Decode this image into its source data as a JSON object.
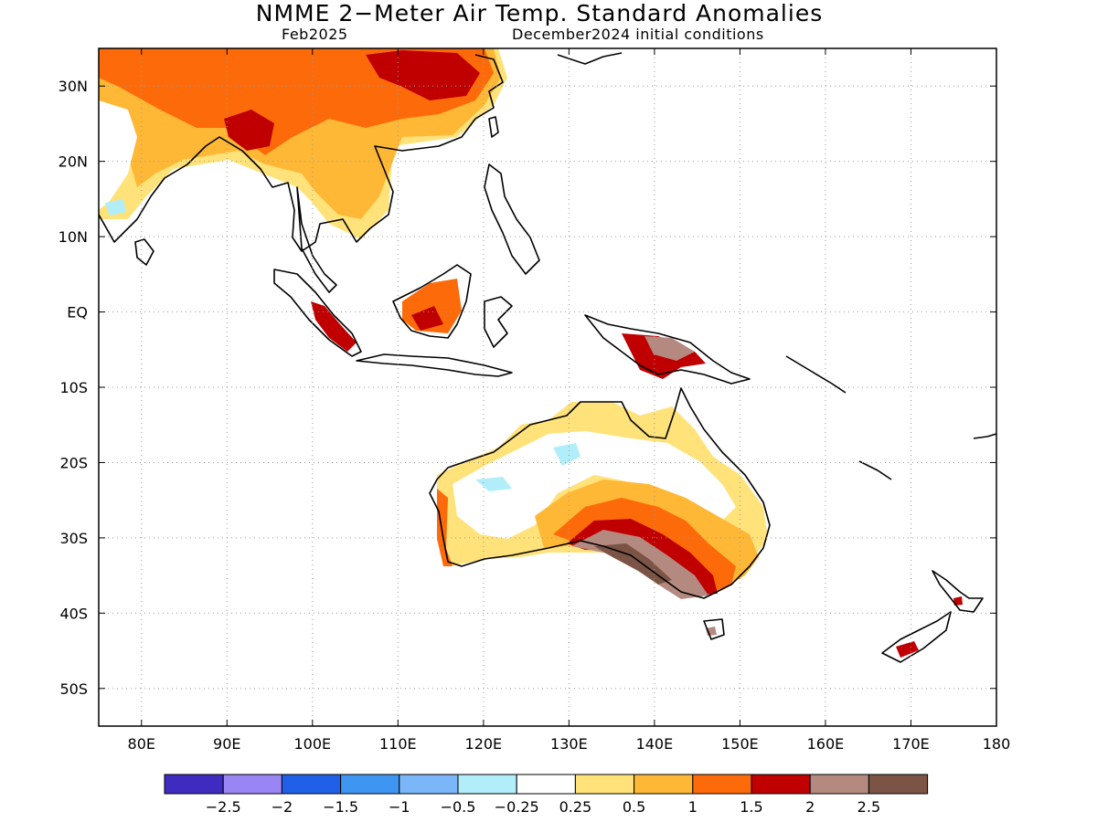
{
  "title": "NMME 2−Meter Air Temp. Standard Anomalies",
  "valid_month": "Feb2025",
  "initial_conditions": "December2024 initial conditions",
  "map": {
    "lon_range": [
      75,
      180
    ],
    "lat_range": [
      -55,
      35
    ],
    "lon_ticks": [
      {
        "value": 80,
        "label": "80E"
      },
      {
        "value": 90,
        "label": "90E"
      },
      {
        "value": 100,
        "label": "100E"
      },
      {
        "value": 110,
        "label": "110E"
      },
      {
        "value": 120,
        "label": "120E"
      },
      {
        "value": 130,
        "label": "130E"
      },
      {
        "value": 140,
        "label": "140E"
      },
      {
        "value": 150,
        "label": "150E"
      },
      {
        "value": 160,
        "label": "160E"
      },
      {
        "value": 170,
        "label": "170E"
      },
      {
        "value": 180,
        "label": "180"
      }
    ],
    "lat_ticks": [
      {
        "value": 30,
        "label": "30N"
      },
      {
        "value": 20,
        "label": "20N"
      },
      {
        "value": 10,
        "label": "10N"
      },
      {
        "value": 0,
        "label": "EQ"
      },
      {
        "value": -10,
        "label": "10S"
      },
      {
        "value": -20,
        "label": "20S"
      },
      {
        "value": -30,
        "label": "30S"
      },
      {
        "value": -40,
        "label": "40S"
      },
      {
        "value": -50,
        "label": "50S"
      }
    ],
    "grid": "dotted"
  },
  "colorbar": {
    "colors": [
      "#3f2bbf",
      "#9a85f4",
      "#2060e8",
      "#3f96f2",
      "#7ab6f8",
      "#b1eefa",
      "#ffffff",
      "#ffe27a",
      "#ffb835",
      "#fd6a0a",
      "#c00000",
      "#b48a80",
      "#7b5446"
    ],
    "labels": [
      "−2.5",
      "−2",
      "−1.5",
      "−1",
      "−0.5",
      "−0.25",
      "0.25",
      "0.5",
      "1",
      "1.5",
      "2",
      "2.5"
    ]
  }
}
